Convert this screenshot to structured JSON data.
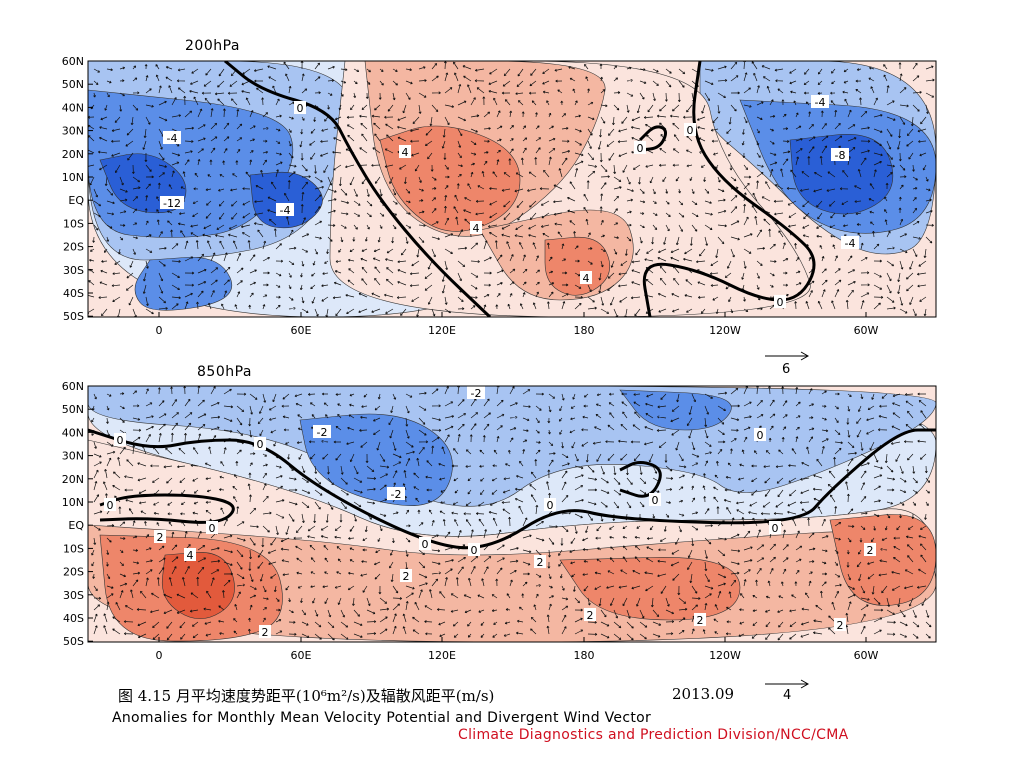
{
  "panels": [
    {
      "title": "200hPa",
      "lat_labels": [
        "60N",
        "50N",
        "40N",
        "30N",
        "20N",
        "10N",
        "EQ",
        "10S",
        "20S",
        "30S",
        "40S",
        "50S"
      ],
      "lon_labels": [
        "0",
        "60E",
        "120E",
        "180",
        "120W",
        "60W"
      ],
      "contour_labels": [
        "-4",
        "-4",
        "-12",
        "-8",
        "-4",
        "-4",
        "-8",
        "-4",
        "0",
        "0",
        "0",
        "0",
        "0",
        "4",
        "4",
        "4",
        "4"
      ],
      "reference_vector": "6"
    },
    {
      "title": "850hPa",
      "lat_labels": [
        "60N",
        "50N",
        "40N",
        "30N",
        "20N",
        "10N",
        "EQ",
        "10S",
        "20S",
        "30S",
        "40S",
        "50S"
      ],
      "lon_labels": [
        "0",
        "60E",
        "120E",
        "180",
        "120W",
        "60W"
      ],
      "contour_labels": [
        "-2",
        "-2",
        "-2",
        "0",
        "0",
        "0",
        "0",
        "0",
        "0",
        "0",
        "0",
        "0",
        "0",
        "2",
        "4",
        "2",
        "2",
        "2",
        "2",
        "2",
        "2",
        "2"
      ],
      "reference_vector": "4"
    }
  ],
  "caption": {
    "chinese": "图 4.15  月平均速度势距平(10⁶m²/s)及辐散风距平(m/s)",
    "date": "2013.09",
    "english": "Anomalies for Monthly Mean Velocity Potential and Divergent Wind Vector",
    "credit": "Climate Diagnostics and Prediction Division/NCC/CMA"
  },
  "colors": {
    "strong_blue": "#2a5fd6",
    "blue": "#5b8ee8",
    "light_blue": "#a8c4f2",
    "pale_blue": "#dde8f9",
    "pale_red": "#fbe4dd",
    "light_red": "#f4b7a2",
    "red": "#ee866a",
    "strong_red": "#e25a3c",
    "credit_text": "#d01020"
  }
}
